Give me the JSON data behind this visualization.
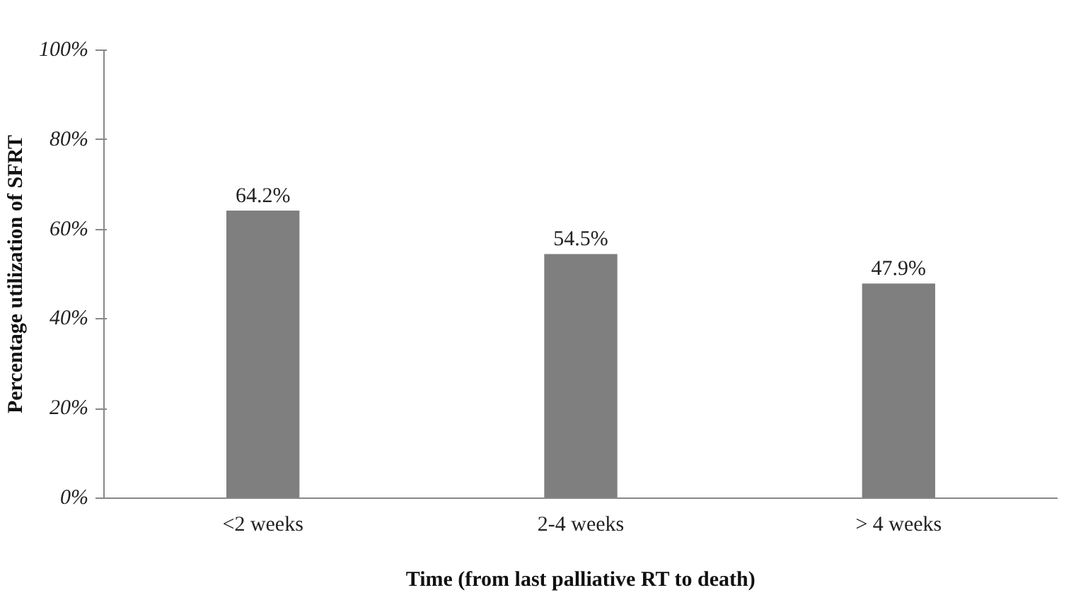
{
  "chart_data": {
    "type": "bar",
    "xlabel": "Time (from last palliative RT to death)",
    "ylabel": "Percentage utilization of SFRT",
    "categories": [
      "<2 weeks",
      "2-4 weeks",
      "> 4 weeks"
    ],
    "values": [
      64.2,
      54.5,
      47.9
    ],
    "value_labels": [
      "64.2%",
      "54.5%",
      "47.9%"
    ],
    "color": "#7f7f7f",
    "ylim": [
      0,
      100
    ],
    "yticks": [
      {
        "value": 0,
        "label": "0%"
      },
      {
        "value": 20,
        "label": "20%"
      },
      {
        "value": 40,
        "label": "40%"
      },
      {
        "value": 60,
        "label": "60%"
      },
      {
        "value": 80,
        "label": "80%"
      },
      {
        "value": 100,
        "label": "100%"
      }
    ],
    "grid": false
  }
}
